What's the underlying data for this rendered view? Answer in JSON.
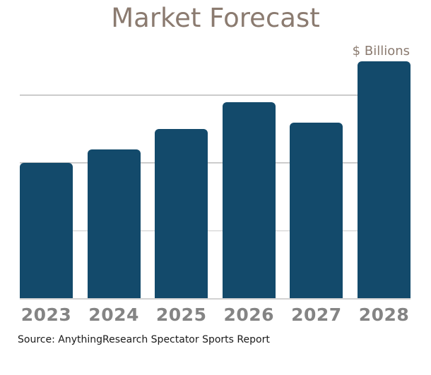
{
  "title": "Market Forecast",
  "unit_label": "$ Billions",
  "source": "Source: AnythingResearch Spectator Sports Report",
  "colors": {
    "bar": "#134a6b",
    "title_text": "#8b7b70",
    "tick_label": "#848484",
    "gridline": "#cccccc",
    "axis_line": "#d2d2d2",
    "source_text": "#1a1a1a",
    "background": "#ffffff"
  },
  "chart_data": {
    "type": "bar",
    "title": "Market Forecast",
    "categories": [
      "2023",
      "2024",
      "2025",
      "2026",
      "2027",
      "2028"
    ],
    "values": [
      2.0,
      2.2,
      2.5,
      2.9,
      2.6,
      3.5
    ],
    "xlabel": "",
    "ylabel": "$ Billions",
    "ylim": [
      0,
      3.5
    ],
    "gridlines_y": [
      1,
      2,
      3
    ],
    "y_tick_labels": [],
    "grid": true,
    "legend": false,
    "value_units": "relative gridline units (y-axis shows no numeric tick labels)"
  }
}
